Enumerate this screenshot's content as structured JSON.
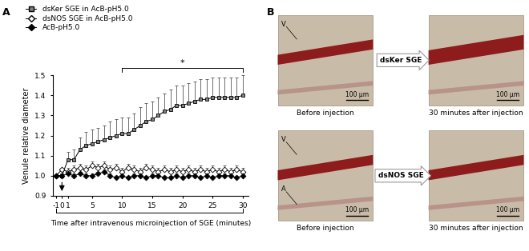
{
  "chart_data": {
    "type": "line",
    "panel_label": "A",
    "x": [
      -1,
      0,
      1,
      2,
      3,
      4,
      5,
      6,
      7,
      8,
      9,
      10,
      11,
      12,
      13,
      14,
      15,
      16,
      17,
      18,
      19,
      20,
      21,
      22,
      23,
      24,
      25,
      26,
      27,
      28,
      29,
      30
    ],
    "xlim": [
      -1.5,
      31
    ],
    "xticks": [
      -1,
      0,
      1,
      5,
      10,
      15,
      20,
      25,
      30
    ],
    "ylim": [
      0.9,
      1.5
    ],
    "yticks": [
      0.9,
      {
        "value": 1.0,
        "label": "1.0"
      },
      1.1,
      1.2,
      1.3,
      1.4,
      1.5
    ],
    "x_label": "Time after intravenous microinjection of SGE (minutes)",
    "y_label": "Venule relative diameter",
    "legend": "upper left",
    "injection_x": 0,
    "significance": {
      "x_range": [
        10,
        30
      ],
      "label": "*"
    },
    "series": [
      {
        "name": "dsKer SGE in AcB-pH5.0",
        "color": "#808080",
        "marker": "square",
        "values": [
          1.0,
          1.0,
          1.08,
          1.08,
          1.13,
          1.15,
          1.16,
          1.17,
          1.18,
          1.19,
          1.2,
          1.21,
          1.21,
          1.23,
          1.25,
          1.27,
          1.28,
          1.3,
          1.32,
          1.33,
          1.35,
          1.35,
          1.36,
          1.37,
          1.38,
          1.38,
          1.39,
          1.39,
          1.39,
          1.39,
          1.39,
          1.4
        ],
        "errors": [
          0.0,
          0.01,
          0.04,
          0.05,
          0.06,
          0.07,
          0.07,
          0.07,
          0.07,
          0.08,
          0.08,
          0.08,
          0.08,
          0.08,
          0.09,
          0.09,
          0.09,
          0.09,
          0.09,
          0.1,
          0.1,
          0.1,
          0.1,
          0.1,
          0.1,
          0.1,
          0.1,
          0.1,
          0.1,
          0.1,
          0.1,
          0.1
        ]
      },
      {
        "name": "dsNOS SGE in AcB-pH5.0",
        "color": "#ffffff",
        "marker": "diamond_open",
        "values": [
          1.0,
          1.03,
          1.02,
          1.03,
          1.04,
          1.03,
          1.05,
          1.04,
          1.05,
          1.03,
          1.04,
          1.02,
          1.04,
          1.03,
          1.02,
          1.04,
          1.03,
          1.02,
          1.03,
          1.02,
          1.03,
          1.02,
          1.03,
          1.02,
          1.03,
          1.02,
          1.03,
          1.02,
          1.03,
          1.02,
          1.03,
          1.02
        ],
        "errors": [
          0.0,
          0.01,
          0.02,
          0.02,
          0.02,
          0.02,
          0.02,
          0.02,
          0.02,
          0.02,
          0.02,
          0.02,
          0.02,
          0.02,
          0.02,
          0.02,
          0.02,
          0.02,
          0.02,
          0.02,
          0.02,
          0.02,
          0.02,
          0.02,
          0.02,
          0.02,
          0.02,
          0.02,
          0.02,
          0.02,
          0.02,
          0.02
        ]
      },
      {
        "name": "AcB-pH5.0",
        "color": "#000000",
        "marker": "diamond",
        "values": [
          1.0,
          1.0,
          1.01,
          1.0,
          1.01,
          1.0,
          1.0,
          1.01,
          1.02,
          1.0,
          0.99,
          1.0,
          0.99,
          1.0,
          1.0,
          0.99,
          1.0,
          1.0,
          0.99,
          0.99,
          1.0,
          0.99,
          1.0,
          1.0,
          0.99,
          1.0,
          0.99,
          1.0,
          1.0,
          1.0,
          0.99,
          1.0
        ],
        "errors": [
          0.0,
          0.01,
          0.01,
          0.01,
          0.01,
          0.01,
          0.01,
          0.01,
          0.01,
          0.01,
          0.01,
          0.01,
          0.01,
          0.01,
          0.01,
          0.01,
          0.01,
          0.01,
          0.01,
          0.01,
          0.01,
          0.01,
          0.01,
          0.01,
          0.01,
          0.01,
          0.01,
          0.01,
          0.01,
          0.01,
          0.01,
          0.01
        ]
      }
    ]
  },
  "panel_b": {
    "label": "B",
    "rows": [
      {
        "treatment": "dsKer SGE",
        "before": {
          "caption": "Before injection",
          "scale_bar": "100 µm",
          "vessel_labels": [
            "V"
          ]
        },
        "after": {
          "caption": "30 minutes after injection",
          "scale_bar": "100 µm",
          "vessel_labels": []
        }
      },
      {
        "treatment": "dsNOS SGE",
        "before": {
          "caption": "Before injection",
          "scale_bar": "100 µm",
          "vessel_labels": [
            "V",
            "A"
          ]
        },
        "after": {
          "caption": "30 minutes after injection",
          "scale_bar": "100 µm",
          "vessel_labels": []
        }
      }
    ]
  }
}
